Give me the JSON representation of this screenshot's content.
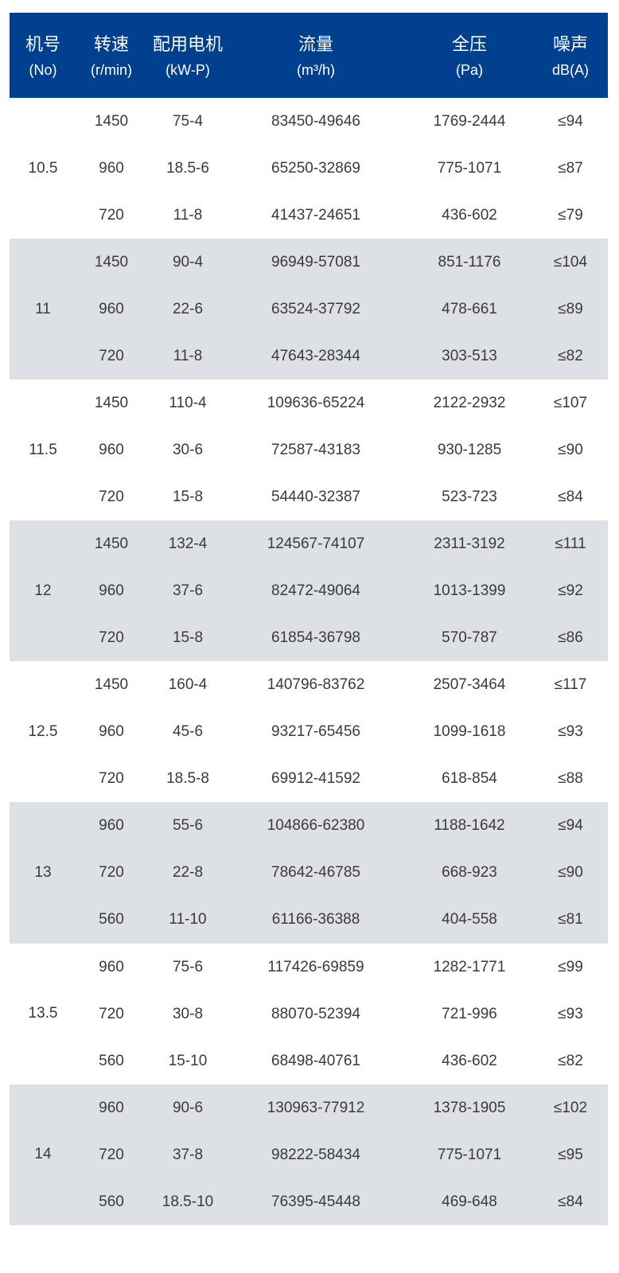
{
  "header": {
    "columns": [
      {
        "label": "机号",
        "unit": "(No)"
      },
      {
        "label": "转速",
        "unit": "(r/min)"
      },
      {
        "label": "配用电机",
        "unit": "(kW-P)"
      },
      {
        "label": "流量",
        "unit": "(m³/h)"
      },
      {
        "label": "全压",
        "unit": "(Pa)"
      },
      {
        "label": "噪声",
        "unit": "dB(A)"
      }
    ]
  },
  "colors": {
    "header_bg": "#013f8f",
    "shaded_row": "#dde1e6",
    "text": "#3a3a3a"
  },
  "groups": [
    {
      "no": "10.5",
      "rows": [
        [
          "1450",
          "75-4",
          "83450-49646",
          "1769-2444",
          "≤94"
        ],
        [
          "960",
          "18.5-6",
          "65250-32869",
          "775-1071",
          "≤87"
        ],
        [
          "720",
          "11-8",
          "41437-24651",
          "436-602",
          "≤79"
        ]
      ]
    },
    {
      "no": "11",
      "rows": [
        [
          "1450",
          "90-4",
          "96949-57081",
          "851-1176",
          "≤104"
        ],
        [
          "960",
          "22-6",
          "63524-37792",
          "478-661",
          "≤89"
        ],
        [
          "720",
          "11-8",
          "47643-28344",
          "303-513",
          "≤82"
        ]
      ]
    },
    {
      "no": "11.5",
      "rows": [
        [
          "1450",
          "110-4",
          "109636-65224",
          "2122-2932",
          "≤107"
        ],
        [
          "960",
          "30-6",
          "72587-43183",
          "930-1285",
          "≤90"
        ],
        [
          "720",
          "15-8",
          "54440-32387",
          "523-723",
          "≤84"
        ]
      ]
    },
    {
      "no": "12",
      "rows": [
        [
          "1450",
          "132-4",
          "124567-74107",
          "2311-3192",
          "≤111"
        ],
        [
          "960",
          "37-6",
          "82472-49064",
          "1013-1399",
          "≤92"
        ],
        [
          "720",
          "15-8",
          "61854-36798",
          "570-787",
          "≤86"
        ]
      ]
    },
    {
      "no": "12.5",
      "rows": [
        [
          "1450",
          "160-4",
          "140796-83762",
          "2507-3464",
          "≤117"
        ],
        [
          "960",
          "45-6",
          "93217-65456",
          "1099-1618",
          "≤93"
        ],
        [
          "720",
          "18.5-8",
          "69912-41592",
          "618-854",
          "≤88"
        ]
      ]
    },
    {
      "no": "13",
      "rows": [
        [
          "960",
          "55-6",
          "104866-62380",
          "1188-1642",
          "≤94"
        ],
        [
          "720",
          "22-8",
          "78642-46785",
          "668-923",
          "≤90"
        ],
        [
          "560",
          "11-10",
          "61166-36388",
          "404-558",
          "≤81"
        ]
      ]
    },
    {
      "no": "13.5",
      "rows": [
        [
          "960",
          "75-6",
          "117426-69859",
          "1282-1771",
          "≤99"
        ],
        [
          "720",
          "30-8",
          "88070-52394",
          "721-996",
          "≤93"
        ],
        [
          "560",
          "15-10",
          "68498-40761",
          "436-602",
          "≤82"
        ]
      ]
    },
    {
      "no": "14",
      "rows": [
        [
          "960",
          "90-6",
          "130963-77912",
          "1378-1905",
          "≤102"
        ],
        [
          "720",
          "37-8",
          "98222-58434",
          "775-1071",
          "≤95"
        ],
        [
          "560",
          "18.5-10",
          "76395-45448",
          "469-648",
          "≤84"
        ]
      ]
    }
  ]
}
